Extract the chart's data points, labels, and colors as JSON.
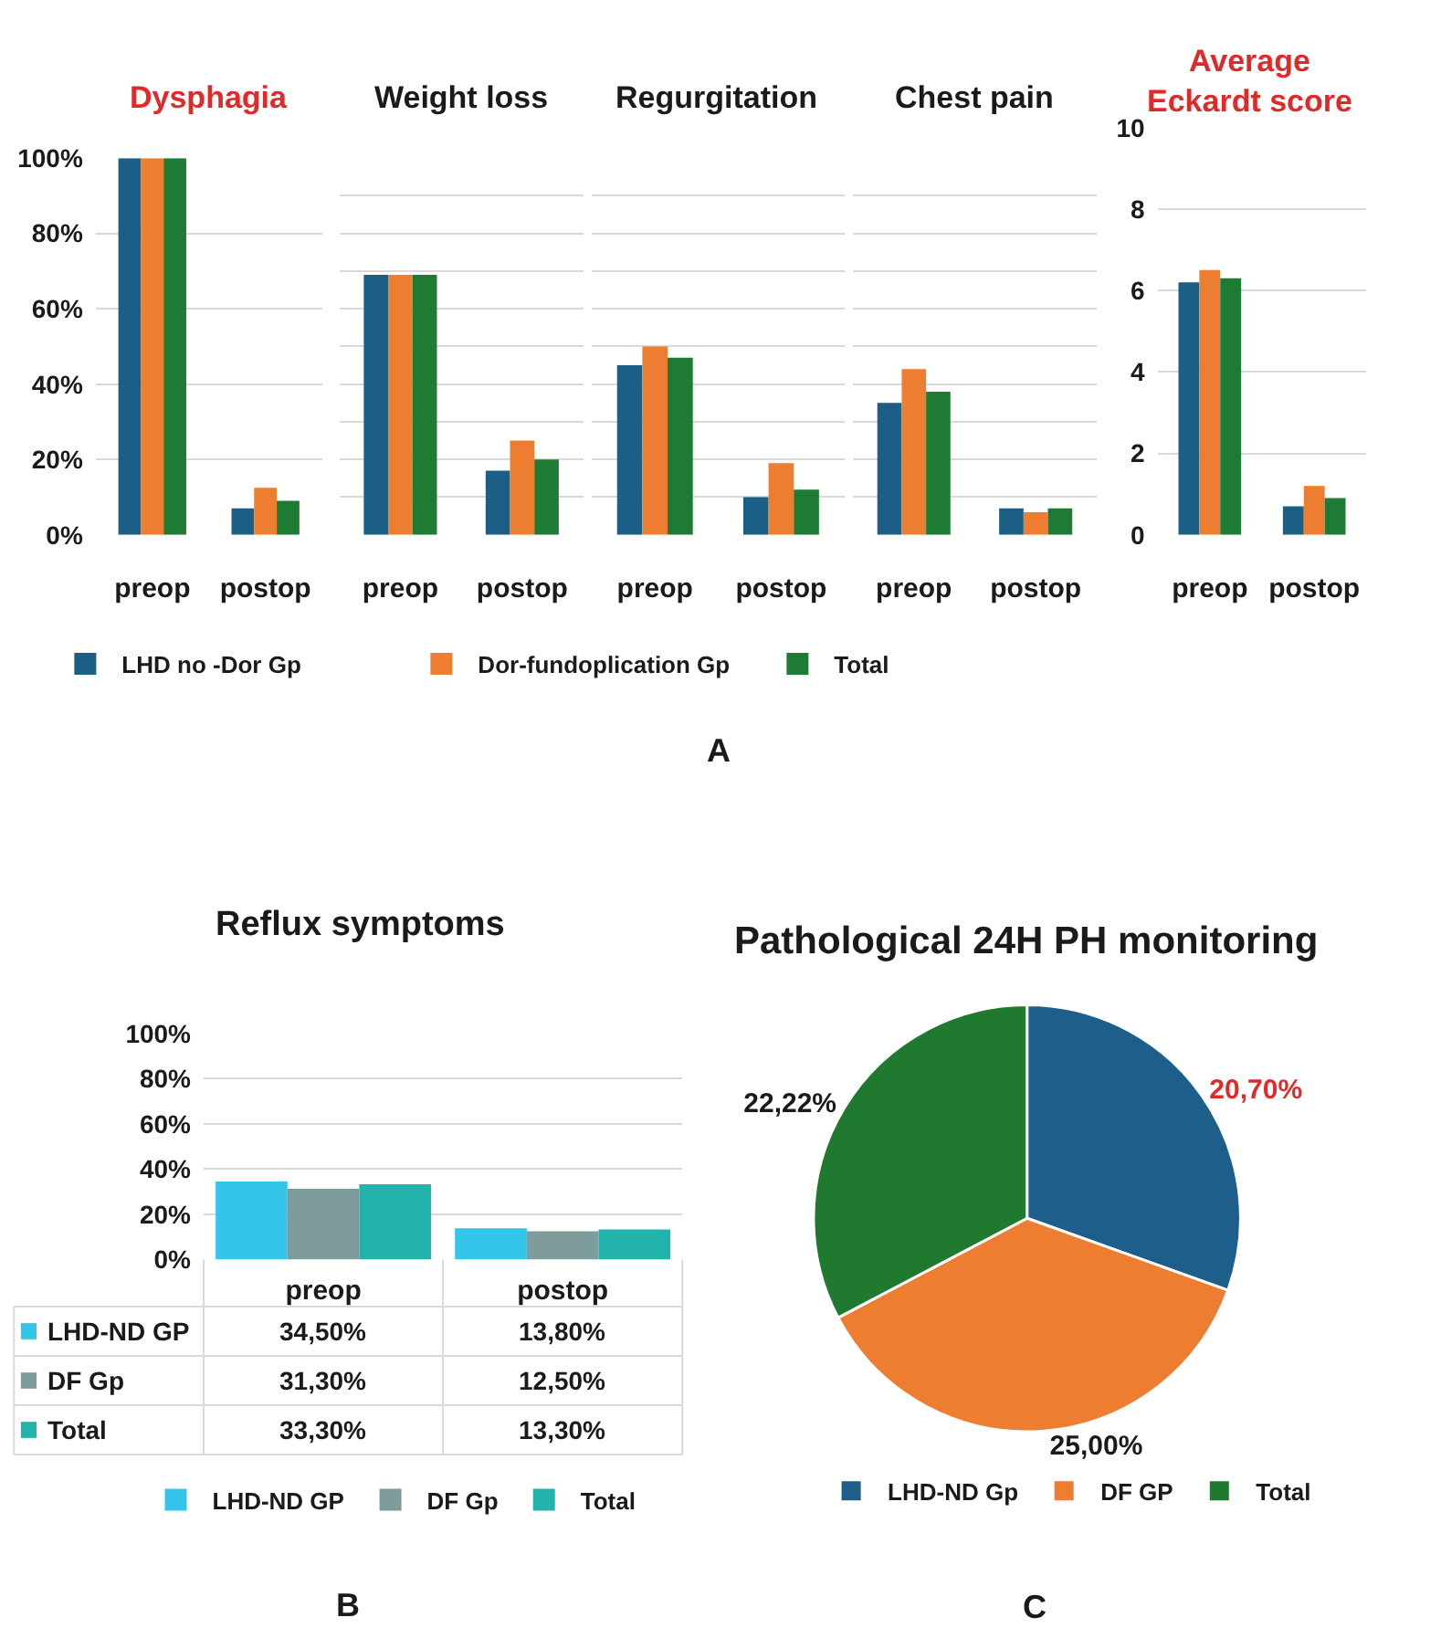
{
  "chart_data": [
    {
      "type": "bar",
      "title": "Dysphagia",
      "categories": [
        "preop",
        "postop"
      ],
      "series": [
        {
          "name": "LHD no -Dor Gp",
          "color": "#1b5e86",
          "values": [
            100,
            7
          ]
        },
        {
          "name": "Dor-fundoplication Gp",
          "color": "#ed7d31",
          "values": [
            100,
            12.5
          ]
        },
        {
          "name": "Total",
          "color": "#1e7b34",
          "values": [
            100,
            9
          ]
        }
      ],
      "ylim": [
        0,
        100
      ],
      "yticks": [
        {
          "value": 0,
          "label": "0%"
        },
        {
          "value": 20,
          "label": "20%"
        },
        {
          "value": 40,
          "label": "40%"
        },
        {
          "value": 60,
          "label": "60%"
        },
        {
          "value": 80,
          "label": "80%"
        },
        {
          "value": 100,
          "label": "100%"
        }
      ],
      "grid": "y",
      "legend": "bottom"
    },
    {
      "type": "bar",
      "title": "Weight loss",
      "categories": [
        "preop",
        "postop"
      ],
      "series": [
        {
          "color": "#1b5e86",
          "values": [
            69,
            17
          ]
        },
        {
          "color": "#ed7d31",
          "values": [
            69,
            25
          ]
        },
        {
          "color": "#1e7b34",
          "values": [
            69,
            20
          ]
        }
      ],
      "ylim": [
        0,
        100
      ],
      "yticks": [
        0,
        10,
        20,
        30,
        40,
        50,
        60,
        70,
        80,
        90,
        100
      ],
      "grid": "y",
      "tick_labels": "x"
    },
    {
      "type": "bar",
      "title": "Regurgitation",
      "categories": [
        "preop",
        "postop"
      ],
      "series": [
        {
          "color": "#1b5e86",
          "values": [
            45,
            10
          ]
        },
        {
          "color": "#ed7d31",
          "values": [
            50,
            19
          ]
        },
        {
          "color": "#1e7b34",
          "values": [
            47,
            12
          ]
        }
      ],
      "ylim": [
        0,
        100
      ],
      "yticks": [
        0,
        10,
        20,
        30,
        40,
        50,
        60,
        70,
        80,
        90,
        100
      ],
      "grid": "y",
      "tick_labels": "x",
      "annotations": [
        "A"
      ]
    },
    {
      "type": "bar",
      "title": "Chest pain",
      "categories": [
        "preop",
        "postop"
      ],
      "series": [
        {
          "color": "#1b5e86",
          "values": [
            35,
            7
          ]
        },
        {
          "color": "#ed7d31",
          "values": [
            44,
            6
          ]
        },
        {
          "color": "#1e7b34",
          "values": [
            38,
            7
          ]
        }
      ],
      "ylim": [
        0,
        100
      ],
      "yticks": [
        0,
        10,
        20,
        30,
        40,
        50,
        60,
        70,
        80,
        90,
        100
      ],
      "grid": "y",
      "tick_labels": "x"
    },
    {
      "type": "bar",
      "title": "Average Eckardt score",
      "categories": [
        "preop",
        "postop"
      ],
      "series": [
        {
          "color": "#1b5e86",
          "values": [
            6.2,
            0.7
          ]
        },
        {
          "color": "#ed7d31",
          "values": [
            6.5,
            1.2
          ]
        },
        {
          "color": "#1e7b34",
          "values": [
            6.3,
            0.9
          ]
        }
      ],
      "ylim": [
        0,
        10
      ],
      "yticks": [
        0,
        2,
        4,
        6,
        8,
        10
      ],
      "grid": "y"
    },
    {
      "type": "bar",
      "title": "Reflux symptoms",
      "categories": [
        "preop",
        "postop"
      ],
      "series": [
        {
          "name": "LHD-ND GP",
          "color": "#35c5ea",
          "values": [
            34.5,
            13.8
          ],
          "value_labels": [
            "34,50%",
            "13,80%"
          ]
        },
        {
          "name": "DF Gp",
          "color": "#7f9c9c",
          "values": [
            31.3,
            12.5
          ],
          "value_labels": [
            "31,30%",
            "12,50%"
          ]
        },
        {
          "name": "Total",
          "color": "#22b3ac",
          "values": [
            33.3,
            13.3
          ],
          "value_labels": [
            "33,30%",
            "13,30%"
          ]
        }
      ],
      "ylim": [
        0,
        100
      ],
      "yticks": [
        {
          "value": 0,
          "label": "0%"
        },
        {
          "value": 20,
          "label": "20%"
        },
        {
          "value": 40,
          "label": "40%"
        },
        {
          "value": 60,
          "label": "60%"
        },
        {
          "value": 80,
          "label": "80%"
        },
        {
          "value": 100,
          "label": "100%"
        }
      ],
      "grid": "y",
      "legend": "bottom",
      "annotations": [
        "B"
      ]
    },
    {
      "type": "pie",
      "title": "Pathological 24H PH monitoring",
      "categories": [
        "LHD-ND Gp",
        "DF GP",
        "Total"
      ],
      "values": [
        20.7,
        25.0,
        22.22
      ],
      "colors": [
        "#1d5f8a",
        "#ed7d31",
        "#1f7a30"
      ],
      "value_labels": [
        "20,70%",
        "25,00%",
        "22,22%"
      ],
      "legend": "bottom",
      "annotations": [
        "C"
      ]
    }
  ]
}
